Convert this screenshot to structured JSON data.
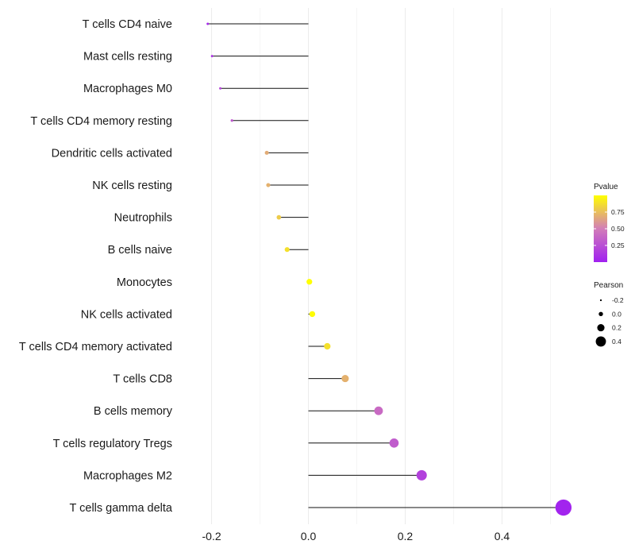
{
  "chart_data": {
    "type": "lollipop",
    "title": "",
    "xlabel": "",
    "ylabel": "",
    "xlim": [
      -0.26,
      0.56
    ],
    "x_ticks": [
      -0.2,
      0.0,
      0.2,
      0.4
    ],
    "x_tick_labels": [
      "-0.2",
      "0.0",
      "0.2",
      "0.4"
    ],
    "categories": [
      "T cells CD4 naive",
      "Mast cells resting",
      "Macrophages M0",
      "T cells CD4 memory resting",
      "Dendritic cells activated",
      "NK cells resting",
      "Neutrophils",
      "B cells naive",
      "Monocytes",
      "NK cells activated",
      "T cells CD4 memory activated",
      "T cells CD8",
      "B cells memory",
      "T cells regulatory  Tregs",
      "Macrophages M2",
      "T cells gamma delta"
    ],
    "pearson": [
      -0.208,
      -0.199,
      -0.182,
      -0.158,
      -0.086,
      -0.083,
      -0.061,
      -0.044,
      0.002,
      0.008,
      0.039,
      0.076,
      0.145,
      0.177,
      0.234,
      0.527
    ],
    "pvalue": [
      0.05,
      0.12,
      0.2,
      0.3,
      0.68,
      0.7,
      0.8,
      0.88,
      1.0,
      0.99,
      0.88,
      0.7,
      0.4,
      0.32,
      0.18,
      0.02
    ],
    "color_legend": {
      "title": "Pvalue",
      "scale_min": 0.0,
      "scale_max": 1.0,
      "ticks": [
        0.25,
        0.5,
        0.75
      ],
      "tick_labels": [
        "0.25",
        "0.50",
        "0.75"
      ],
      "low_color": "#a020f0",
      "mid_color": "#d27db8",
      "high_color": "#ffff00"
    },
    "size_legend": {
      "title": "Pearson",
      "values": [
        -0.2,
        0.0,
        0.2,
        0.4
      ],
      "labels": [
        "-0.2",
        "0.0",
        "0.2",
        "0.4"
      ]
    },
    "grid": true,
    "legend_position": "right"
  }
}
